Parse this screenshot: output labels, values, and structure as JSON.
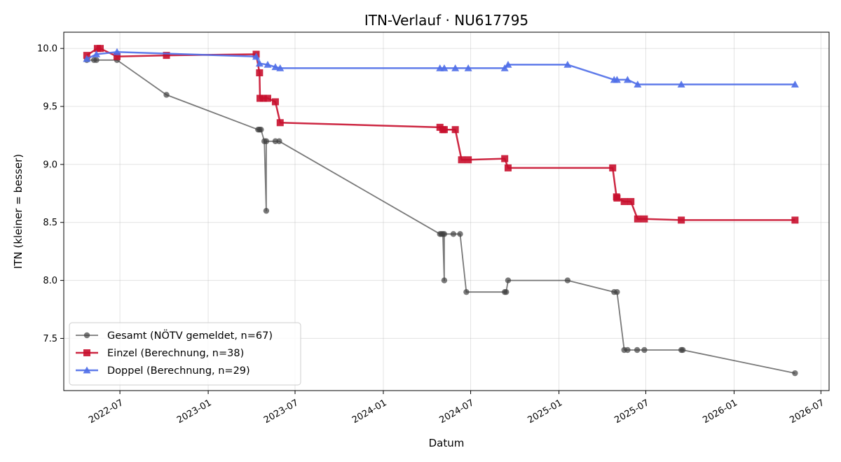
{
  "chart_data": {
    "type": "line",
    "title": "ITN-Verlauf · NU617795",
    "xlabel": "Datum",
    "ylabel": "ITN  (kleiner = besser)",
    "x_type": "date",
    "xlim": [
      "2022-03-06",
      "2026-07-18"
    ],
    "ylim": [
      7.05,
      10.14
    ],
    "x_ticks": [
      "2022-07-01",
      "2023-01-01",
      "2023-07-01",
      "2024-01-01",
      "2024-07-01",
      "2025-01-01",
      "2025-07-01",
      "2026-01-01",
      "2026-07-01"
    ],
    "x_tick_labels": [
      "2022-07",
      "2023-01",
      "2023-07",
      "2024-01",
      "2024-07",
      "2025-01",
      "2025-07",
      "2026-01",
      "2026-07"
    ],
    "y_ticks": [
      7.5,
      8.0,
      8.5,
      9.0,
      9.5,
      10.0
    ],
    "y_tick_labels": [
      "7.5",
      "8.0",
      "8.5",
      "9.0",
      "9.5",
      "10.0"
    ],
    "grid": true,
    "legend_position": "lower-left",
    "series": [
      {
        "name": "Gesamt (NÖTV gemeldet, n=67)",
        "color": "#404040",
        "marker": "circle",
        "points": [
          [
            "2022-04-23",
            9.9
          ],
          [
            "2022-05-08",
            9.9
          ],
          [
            "2022-05-13",
            9.9
          ],
          [
            "2022-06-25",
            9.9
          ],
          [
            "2022-10-06",
            9.6
          ],
          [
            "2023-04-15",
            9.3
          ],
          [
            "2023-04-18",
            9.3
          ],
          [
            "2023-04-21",
            9.3
          ],
          [
            "2023-04-28",
            9.2
          ],
          [
            "2023-05-02",
            8.6
          ],
          [
            "2023-05-02",
            9.2
          ],
          [
            "2023-05-21",
            9.2
          ],
          [
            "2023-05-29",
            9.2
          ],
          [
            "2024-04-28",
            8.4
          ],
          [
            "2024-05-01",
            8.4
          ],
          [
            "2024-05-04",
            8.4
          ],
          [
            "2024-05-07",
            8.0
          ],
          [
            "2024-05-07",
            8.4
          ],
          [
            "2024-05-26",
            8.4
          ],
          [
            "2024-06-09",
            8.4
          ],
          [
            "2024-06-22",
            7.9
          ],
          [
            "2024-09-10",
            7.9
          ],
          [
            "2024-09-13",
            7.9
          ],
          [
            "2024-09-17",
            8.0
          ],
          [
            "2025-01-19",
            8.0
          ],
          [
            "2025-04-26",
            7.9
          ],
          [
            "2025-05-02",
            7.9
          ],
          [
            "2025-05-17",
            7.4
          ],
          [
            "2025-05-24",
            7.4
          ],
          [
            "2025-06-13",
            7.4
          ],
          [
            "2025-06-28",
            7.4
          ],
          [
            "2025-09-13",
            7.4
          ],
          [
            "2025-09-16",
            7.4
          ],
          [
            "2026-05-08",
            7.2
          ]
        ]
      },
      {
        "name": "Einzel (Berechnung, n=38)",
        "color": "#c8102e",
        "marker": "square",
        "points": [
          [
            "2022-04-23",
            9.94
          ],
          [
            "2022-05-15",
            10.0
          ],
          [
            "2022-05-21",
            10.0
          ],
          [
            "2022-06-25",
            9.93
          ],
          [
            "2022-10-06",
            9.94
          ],
          [
            "2023-04-11",
            9.95
          ],
          [
            "2023-04-18",
            9.79
          ],
          [
            "2023-04-19",
            9.57
          ],
          [
            "2023-04-26",
            9.57
          ],
          [
            "2023-05-05",
            9.57
          ],
          [
            "2023-05-21",
            9.54
          ],
          [
            "2023-05-31",
            9.36
          ],
          [
            "2024-04-28",
            9.32
          ],
          [
            "2024-05-04",
            9.3
          ],
          [
            "2024-05-07",
            9.3
          ],
          [
            "2024-05-30",
            9.3
          ],
          [
            "2024-06-12",
            9.04
          ],
          [
            "2024-06-26",
            9.04
          ],
          [
            "2024-09-10",
            9.05
          ],
          [
            "2024-09-17",
            8.97
          ],
          [
            "2025-04-23",
            8.97
          ],
          [
            "2025-05-01",
            8.72
          ],
          [
            "2025-05-02",
            8.71
          ],
          [
            "2025-05-17",
            8.68
          ],
          [
            "2025-05-31",
            8.68
          ],
          [
            "2025-06-14",
            8.53
          ],
          [
            "2025-06-28",
            8.53
          ],
          [
            "2025-09-13",
            8.52
          ],
          [
            "2026-05-08",
            8.52
          ]
        ]
      },
      {
        "name": "Doppel (Berechnung, n=29)",
        "color": "#4f6ee8",
        "marker": "triangle",
        "points": [
          [
            "2022-04-23",
            9.91
          ],
          [
            "2022-05-13",
            9.95
          ],
          [
            "2022-06-25",
            9.97
          ],
          [
            "2023-04-11",
            9.93
          ],
          [
            "2023-04-18",
            9.87
          ],
          [
            "2023-05-05",
            9.86
          ],
          [
            "2023-05-21",
            9.84
          ],
          [
            "2023-05-31",
            9.83
          ],
          [
            "2024-04-28",
            9.83
          ],
          [
            "2024-05-07",
            9.83
          ],
          [
            "2024-05-30",
            9.83
          ],
          [
            "2024-06-26",
            9.83
          ],
          [
            "2024-09-10",
            9.83
          ],
          [
            "2024-09-17",
            9.86
          ],
          [
            "2025-01-19",
            9.86
          ],
          [
            "2025-04-26",
            9.73
          ],
          [
            "2025-05-02",
            9.73
          ],
          [
            "2025-05-24",
            9.73
          ],
          [
            "2025-06-14",
            9.69
          ],
          [
            "2025-09-13",
            9.69
          ],
          [
            "2026-05-08",
            9.69
          ]
        ]
      }
    ]
  }
}
